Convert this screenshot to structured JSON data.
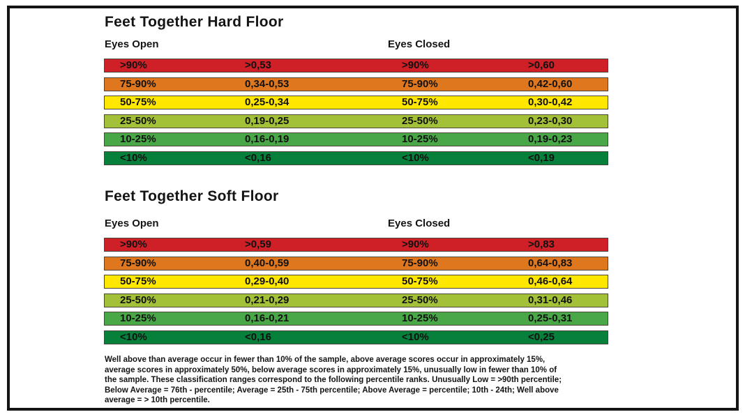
{
  "frame": {
    "border_color": "#141414"
  },
  "colors": {
    "red": "#ce2026",
    "orange": "#de771e",
    "yellow": "#ffe700",
    "yellow_green": "#a2c038",
    "green": "#49a747",
    "dark_green": "#07803c"
  },
  "tables": [
    {
      "title": "Feet Together Hard Floor",
      "left_header": "Eyes Open",
      "right_header": "Eyes Closed",
      "rows": [
        {
          "color": "#ce2026",
          "eo_pct": ">90%",
          "eo_val": ">0,53",
          "ec_pct": ">90%",
          "ec_val": ">0,60"
        },
        {
          "color": "#de771e",
          "eo_pct": "75-90%",
          "eo_val": "0,34-0,53",
          "ec_pct": "75-90%",
          "ec_val": "0,42-0,60"
        },
        {
          "color": "#ffe700",
          "eo_pct": "50-75%",
          "eo_val": "0,25-0,34",
          "ec_pct": "50-75%",
          "ec_val": "0,30-0,42"
        },
        {
          "color": "#a2c038",
          "eo_pct": "25-50%",
          "eo_val": "0,19-0,25",
          "ec_pct": "25-50%",
          "ec_val": "0,23-0,30"
        },
        {
          "color": "#49a747",
          "eo_pct": "10-25%",
          "eo_val": "0,16-0,19",
          "ec_pct": "10-25%",
          "ec_val": "0,19-0,23"
        },
        {
          "color": "#07803c",
          "eo_pct": "<10%",
          "eo_val": "<0,16",
          "ec_pct": "<10%",
          "ec_val": "<0,19"
        }
      ]
    },
    {
      "title": "Feet Together Soft Floor",
      "left_header": "Eyes Open",
      "right_header": "Eyes Closed",
      "rows": [
        {
          "color": "#ce2026",
          "eo_pct": ">90%",
          "eo_val": ">0,59",
          "ec_pct": ">90%",
          "ec_val": ">0,83"
        },
        {
          "color": "#de771e",
          "eo_pct": "75-90%",
          "eo_val": "0,40-0,59",
          "ec_pct": "75-90%",
          "ec_val": "0,64-0,83"
        },
        {
          "color": "#ffe700",
          "eo_pct": "50-75%",
          "eo_val": "0,29-0,40",
          "ec_pct": "50-75%",
          "ec_val": "0,46-0,64"
        },
        {
          "color": "#a2c038",
          "eo_pct": "25-50%",
          "eo_val": "0,21-0,29",
          "ec_pct": "25-50%",
          "ec_val": "0,31-0,46"
        },
        {
          "color": "#49a747",
          "eo_pct": "10-25%",
          "eo_val": "0,16-0,21",
          "ec_pct": "10-25%",
          "ec_val": "0,25-0,31"
        },
        {
          "color": "#07803c",
          "eo_pct": "<10%",
          "eo_val": "<0,16",
          "ec_pct": "<10%",
          "ec_val": "<0,25"
        }
      ]
    }
  ],
  "footnote_lines": [
    "Well above than average occur in fewer than 10% of the sample, above average scores occur in approximately 15%,",
    "average scores in approximately 50%, below average scores in approximately 15%, unusually low in fewer than 10% of",
    "the sample. These classification ranges correspond to the following percentile ranks. Unusually Low = >90th percentile;",
    "Below Average = 76th - percentile; Average = 25th - 75th percentile; Above Average = percentile; 10th - 24th; Well above",
    "average = > 10th percentile."
  ]
}
